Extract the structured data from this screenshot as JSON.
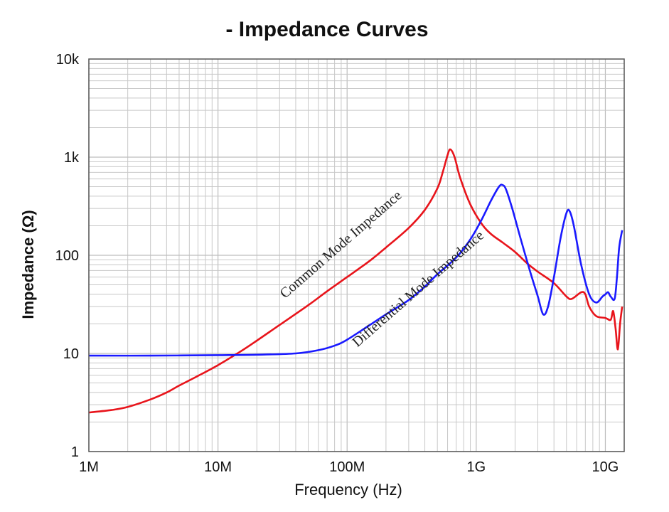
{
  "chart_data": {
    "type": "line",
    "title": "- Impedance Curves",
    "xlabel": "Frequency (Hz)",
    "ylabel": "Impedance (Ω)",
    "x_scale": "log",
    "y_scale": "log",
    "xlim": [
      1000000,
      14000000000
    ],
    "ylim": [
      1,
      10000
    ],
    "grid": true,
    "x_ticks": [
      {
        "value": 1000000,
        "label": "1M"
      },
      {
        "value": 10000000,
        "label": "10M"
      },
      {
        "value": 100000000,
        "label": "100M"
      },
      {
        "value": 1000000000,
        "label": "1G"
      },
      {
        "value": 10000000000,
        "label": "10G"
      }
    ],
    "y_ticks": [
      {
        "value": 1,
        "label": "1"
      },
      {
        "value": 10,
        "label": "10"
      },
      {
        "value": 100,
        "label": "100"
      },
      {
        "value": 1000,
        "label": "1k"
      },
      {
        "value": 10000,
        "label": "10k"
      }
    ],
    "series": [
      {
        "name": "Common Mode Impedance",
        "color": "#e8141b",
        "points": [
          [
            1000000,
            2.5
          ],
          [
            1500000,
            2.65
          ],
          [
            2000000,
            2.85
          ],
          [
            3000000,
            3.4
          ],
          [
            4000000,
            4.0
          ],
          [
            5000000,
            4.7
          ],
          [
            7000000,
            5.9
          ],
          [
            10000000,
            7.6
          ],
          [
            15000000,
            10.5
          ],
          [
            20000000,
            13.5
          ],
          [
            30000000,
            19.5
          ],
          [
            50000000,
            31
          ],
          [
            70000000,
            43
          ],
          [
            100000000,
            60
          ],
          [
            150000000,
            88
          ],
          [
            200000000,
            120
          ],
          [
            300000000,
            190
          ],
          [
            400000000,
            290
          ],
          [
            500000000,
            480
          ],
          [
            550000000,
            700
          ],
          [
            600000000,
            1050
          ],
          [
            630000000,
            1200
          ],
          [
            680000000,
            1000
          ],
          [
            750000000,
            620
          ],
          [
            900000000,
            330
          ],
          [
            1100000000,
            210
          ],
          [
            1300000000,
            165
          ],
          [
            1600000000,
            135
          ],
          [
            2000000000,
            108
          ],
          [
            2500000000,
            82
          ],
          [
            3000000000,
            68
          ],
          [
            4000000000,
            52
          ],
          [
            5000000000,
            38
          ],
          [
            5500000000,
            36
          ],
          [
            6500000000,
            42
          ],
          [
            7000000000,
            40
          ],
          [
            7500000000,
            30
          ],
          [
            8500000000,
            24
          ],
          [
            10000000000,
            23
          ],
          [
            11000000000,
            22
          ],
          [
            11500000000,
            27
          ],
          [
            12000000000,
            18
          ],
          [
            12500000000,
            11
          ],
          [
            13000000000,
            20
          ],
          [
            13500000000,
            30
          ]
        ]
      },
      {
        "name": "Differential Mode Impedance",
        "color": "#1a1aff",
        "points": [
          [
            1000000,
            9.5
          ],
          [
            3000000,
            9.5
          ],
          [
            10000000,
            9.6
          ],
          [
            20000000,
            9.7
          ],
          [
            40000000,
            10
          ],
          [
            60000000,
            10.8
          ],
          [
            80000000,
            12
          ],
          [
            100000000,
            13.8
          ],
          [
            150000000,
            19.5
          ],
          [
            200000000,
            25
          ],
          [
            300000000,
            35
          ],
          [
            400000000,
            48
          ],
          [
            500000000,
            64
          ],
          [
            700000000,
            95
          ],
          [
            900000000,
            145
          ],
          [
            1100000000,
            230
          ],
          [
            1300000000,
            360
          ],
          [
            1500000000,
            500
          ],
          [
            1600000000,
            520
          ],
          [
            1700000000,
            470
          ],
          [
            1900000000,
            300
          ],
          [
            2200000000,
            150
          ],
          [
            2600000000,
            70
          ],
          [
            3000000000,
            38
          ],
          [
            3300000000,
            25
          ],
          [
            3600000000,
            30
          ],
          [
            4000000000,
            60
          ],
          [
            4500000000,
            150
          ],
          [
            5000000000,
            270
          ],
          [
            5300000000,
            280
          ],
          [
            5700000000,
            200
          ],
          [
            6500000000,
            80
          ],
          [
            7500000000,
            40
          ],
          [
            8500000000,
            33
          ],
          [
            9500000000,
            38
          ],
          [
            10000000000,
            40
          ],
          [
            10500000000,
            42
          ],
          [
            11000000000,
            38
          ],
          [
            11800000000,
            36
          ],
          [
            12300000000,
            60
          ],
          [
            12800000000,
            120
          ],
          [
            13500000000,
            180
          ]
        ]
      }
    ],
    "annotations": [
      {
        "text": "Common Mode Impedance",
        "series": 0
      },
      {
        "text": "Differential Mode Impedance",
        "series": 1
      }
    ]
  }
}
